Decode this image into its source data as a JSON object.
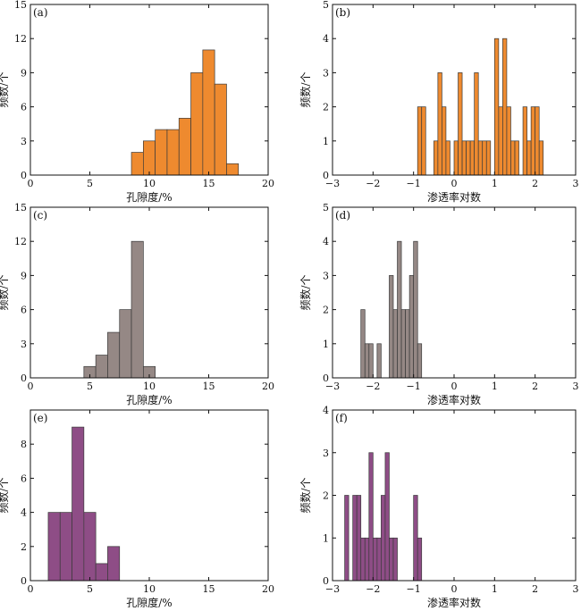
{
  "figure": {
    "background": "#ffffff"
  },
  "chart_data": [
    {
      "panel": "(a)",
      "type": "bar",
      "color": "#ee8a2f",
      "xlabel": "孔隙度/%",
      "ylabel": "频数/个",
      "xlim": [
        0,
        20
      ],
      "ylim": [
        0,
        15
      ],
      "xticks": [
        0,
        5,
        10,
        15,
        20
      ],
      "yticks": [
        0,
        3,
        6,
        9,
        12,
        15
      ],
      "bin_width": 1,
      "bins": [
        {
          "x": 9,
          "count": 2
        },
        {
          "x": 10,
          "count": 3
        },
        {
          "x": 11,
          "count": 4
        },
        {
          "x": 12,
          "count": 4
        },
        {
          "x": 13,
          "count": 5
        },
        {
          "x": 14,
          "count": 9
        },
        {
          "x": 15,
          "count": 11
        },
        {
          "x": 16,
          "count": 8
        },
        {
          "x": 17,
          "count": 1
        }
      ]
    },
    {
      "panel": "(b)",
      "type": "bar",
      "color": "#ee8a2f",
      "xlabel": "渗透率对数",
      "ylabel": "频数/个",
      "xlim": [
        -3,
        3
      ],
      "ylim": [
        0,
        5
      ],
      "xticks": [
        -3,
        -2,
        -1,
        0,
        1,
        2,
        3
      ],
      "yticks": [
        0,
        1,
        2,
        3,
        4,
        5
      ],
      "bin_width": 0.1,
      "bins": [
        {
          "x": -0.85,
          "count": 2
        },
        {
          "x": -0.75,
          "count": 2
        },
        {
          "x": -0.45,
          "count": 1
        },
        {
          "x": -0.35,
          "count": 3
        },
        {
          "x": -0.25,
          "count": 2
        },
        {
          "x": -0.15,
          "count": 1
        },
        {
          "x": 0.05,
          "count": 1
        },
        {
          "x": 0.15,
          "count": 3
        },
        {
          "x": 0.25,
          "count": 1
        },
        {
          "x": 0.35,
          "count": 1
        },
        {
          "x": 0.45,
          "count": 1
        },
        {
          "x": 0.55,
          "count": 3
        },
        {
          "x": 0.65,
          "count": 1
        },
        {
          "x": 0.75,
          "count": 1
        },
        {
          "x": 0.85,
          "count": 1
        },
        {
          "x": 1.05,
          "count": 4
        },
        {
          "x": 1.15,
          "count": 2
        },
        {
          "x": 1.25,
          "count": 4
        },
        {
          "x": 1.35,
          "count": 2
        },
        {
          "x": 1.45,
          "count": 1
        },
        {
          "x": 1.55,
          "count": 1
        },
        {
          "x": 1.75,
          "count": 2
        },
        {
          "x": 1.85,
          "count": 1
        },
        {
          "x": 1.95,
          "count": 2
        },
        {
          "x": 2.05,
          "count": 2
        },
        {
          "x": 2.15,
          "count": 1
        }
      ]
    },
    {
      "panel": "(c)",
      "type": "bar",
      "color": "#958885",
      "xlabel": "孔隙度/%",
      "ylabel": "频数/个",
      "xlim": [
        0,
        20
      ],
      "ylim": [
        0,
        15
      ],
      "xticks": [
        0,
        5,
        10,
        15,
        20
      ],
      "yticks": [
        0,
        3,
        6,
        9,
        12,
        15
      ],
      "bin_width": 1,
      "bins": [
        {
          "x": 5,
          "count": 1
        },
        {
          "x": 6,
          "count": 2
        },
        {
          "x": 7,
          "count": 4
        },
        {
          "x": 8,
          "count": 6
        },
        {
          "x": 9,
          "count": 12
        },
        {
          "x": 10,
          "count": 1
        }
      ]
    },
    {
      "panel": "(d)",
      "type": "bar",
      "color": "#958885",
      "xlabel": "渗透率对数",
      "ylabel": "频数/个",
      "xlim": [
        -3,
        3
      ],
      "ylim": [
        0,
        5
      ],
      "xticks": [
        -3,
        -2,
        -1,
        0,
        1,
        2,
        3
      ],
      "yticks": [
        0,
        1,
        2,
        3,
        4,
        5
      ],
      "bin_width": 0.1,
      "bins": [
        {
          "x": -2.25,
          "count": 2
        },
        {
          "x": -2.15,
          "count": 1
        },
        {
          "x": -2.05,
          "count": 1
        },
        {
          "x": -1.85,
          "count": 1
        },
        {
          "x": -1.55,
          "count": 3
        },
        {
          "x": -1.45,
          "count": 2
        },
        {
          "x": -1.35,
          "count": 4
        },
        {
          "x": -1.25,
          "count": 2
        },
        {
          "x": -1.15,
          "count": 2
        },
        {
          "x": -1.05,
          "count": 3
        },
        {
          "x": -0.95,
          "count": 4
        },
        {
          "x": -0.85,
          "count": 1
        }
      ]
    },
    {
      "panel": "(e)",
      "type": "bar",
      "color": "#8e4d86",
      "xlabel": "孔隙度/%",
      "ylabel": "频数/个",
      "xlim": [
        0,
        20
      ],
      "ylim": [
        0,
        10
      ],
      "xticks": [
        0,
        5,
        10,
        15,
        20
      ],
      "yticks": [
        0,
        2,
        4,
        6,
        8
      ],
      "bin_width": 1,
      "bins": [
        {
          "x": 2,
          "count": 4
        },
        {
          "x": 3,
          "count": 4
        },
        {
          "x": 4,
          "count": 9
        },
        {
          "x": 5,
          "count": 4
        },
        {
          "x": 6,
          "count": 1
        },
        {
          "x": 7,
          "count": 2
        }
      ]
    },
    {
      "panel": "(f)",
      "type": "bar",
      "color": "#8e4d86",
      "xlabel": "渗透率对数",
      "ylabel": "频数/个",
      "xlim": [
        -3,
        3
      ],
      "ylim": [
        0,
        4
      ],
      "xticks": [
        -3,
        -2,
        -1,
        0,
        1,
        2,
        3
      ],
      "yticks": [
        0,
        1,
        2,
        3,
        4
      ],
      "bin_width": 0.1,
      "bins": [
        {
          "x": -2.65,
          "count": 2
        },
        {
          "x": -2.45,
          "count": 2
        },
        {
          "x": -2.35,
          "count": 2
        },
        {
          "x": -2.25,
          "count": 1
        },
        {
          "x": -2.15,
          "count": 1
        },
        {
          "x": -2.05,
          "count": 3
        },
        {
          "x": -1.95,
          "count": 1
        },
        {
          "x": -1.85,
          "count": 1
        },
        {
          "x": -1.75,
          "count": 2
        },
        {
          "x": -1.65,
          "count": 3
        },
        {
          "x": -1.55,
          "count": 1
        },
        {
          "x": -1.45,
          "count": 1
        },
        {
          "x": -0.95,
          "count": 2
        },
        {
          "x": -0.85,
          "count": 1
        }
      ]
    }
  ]
}
